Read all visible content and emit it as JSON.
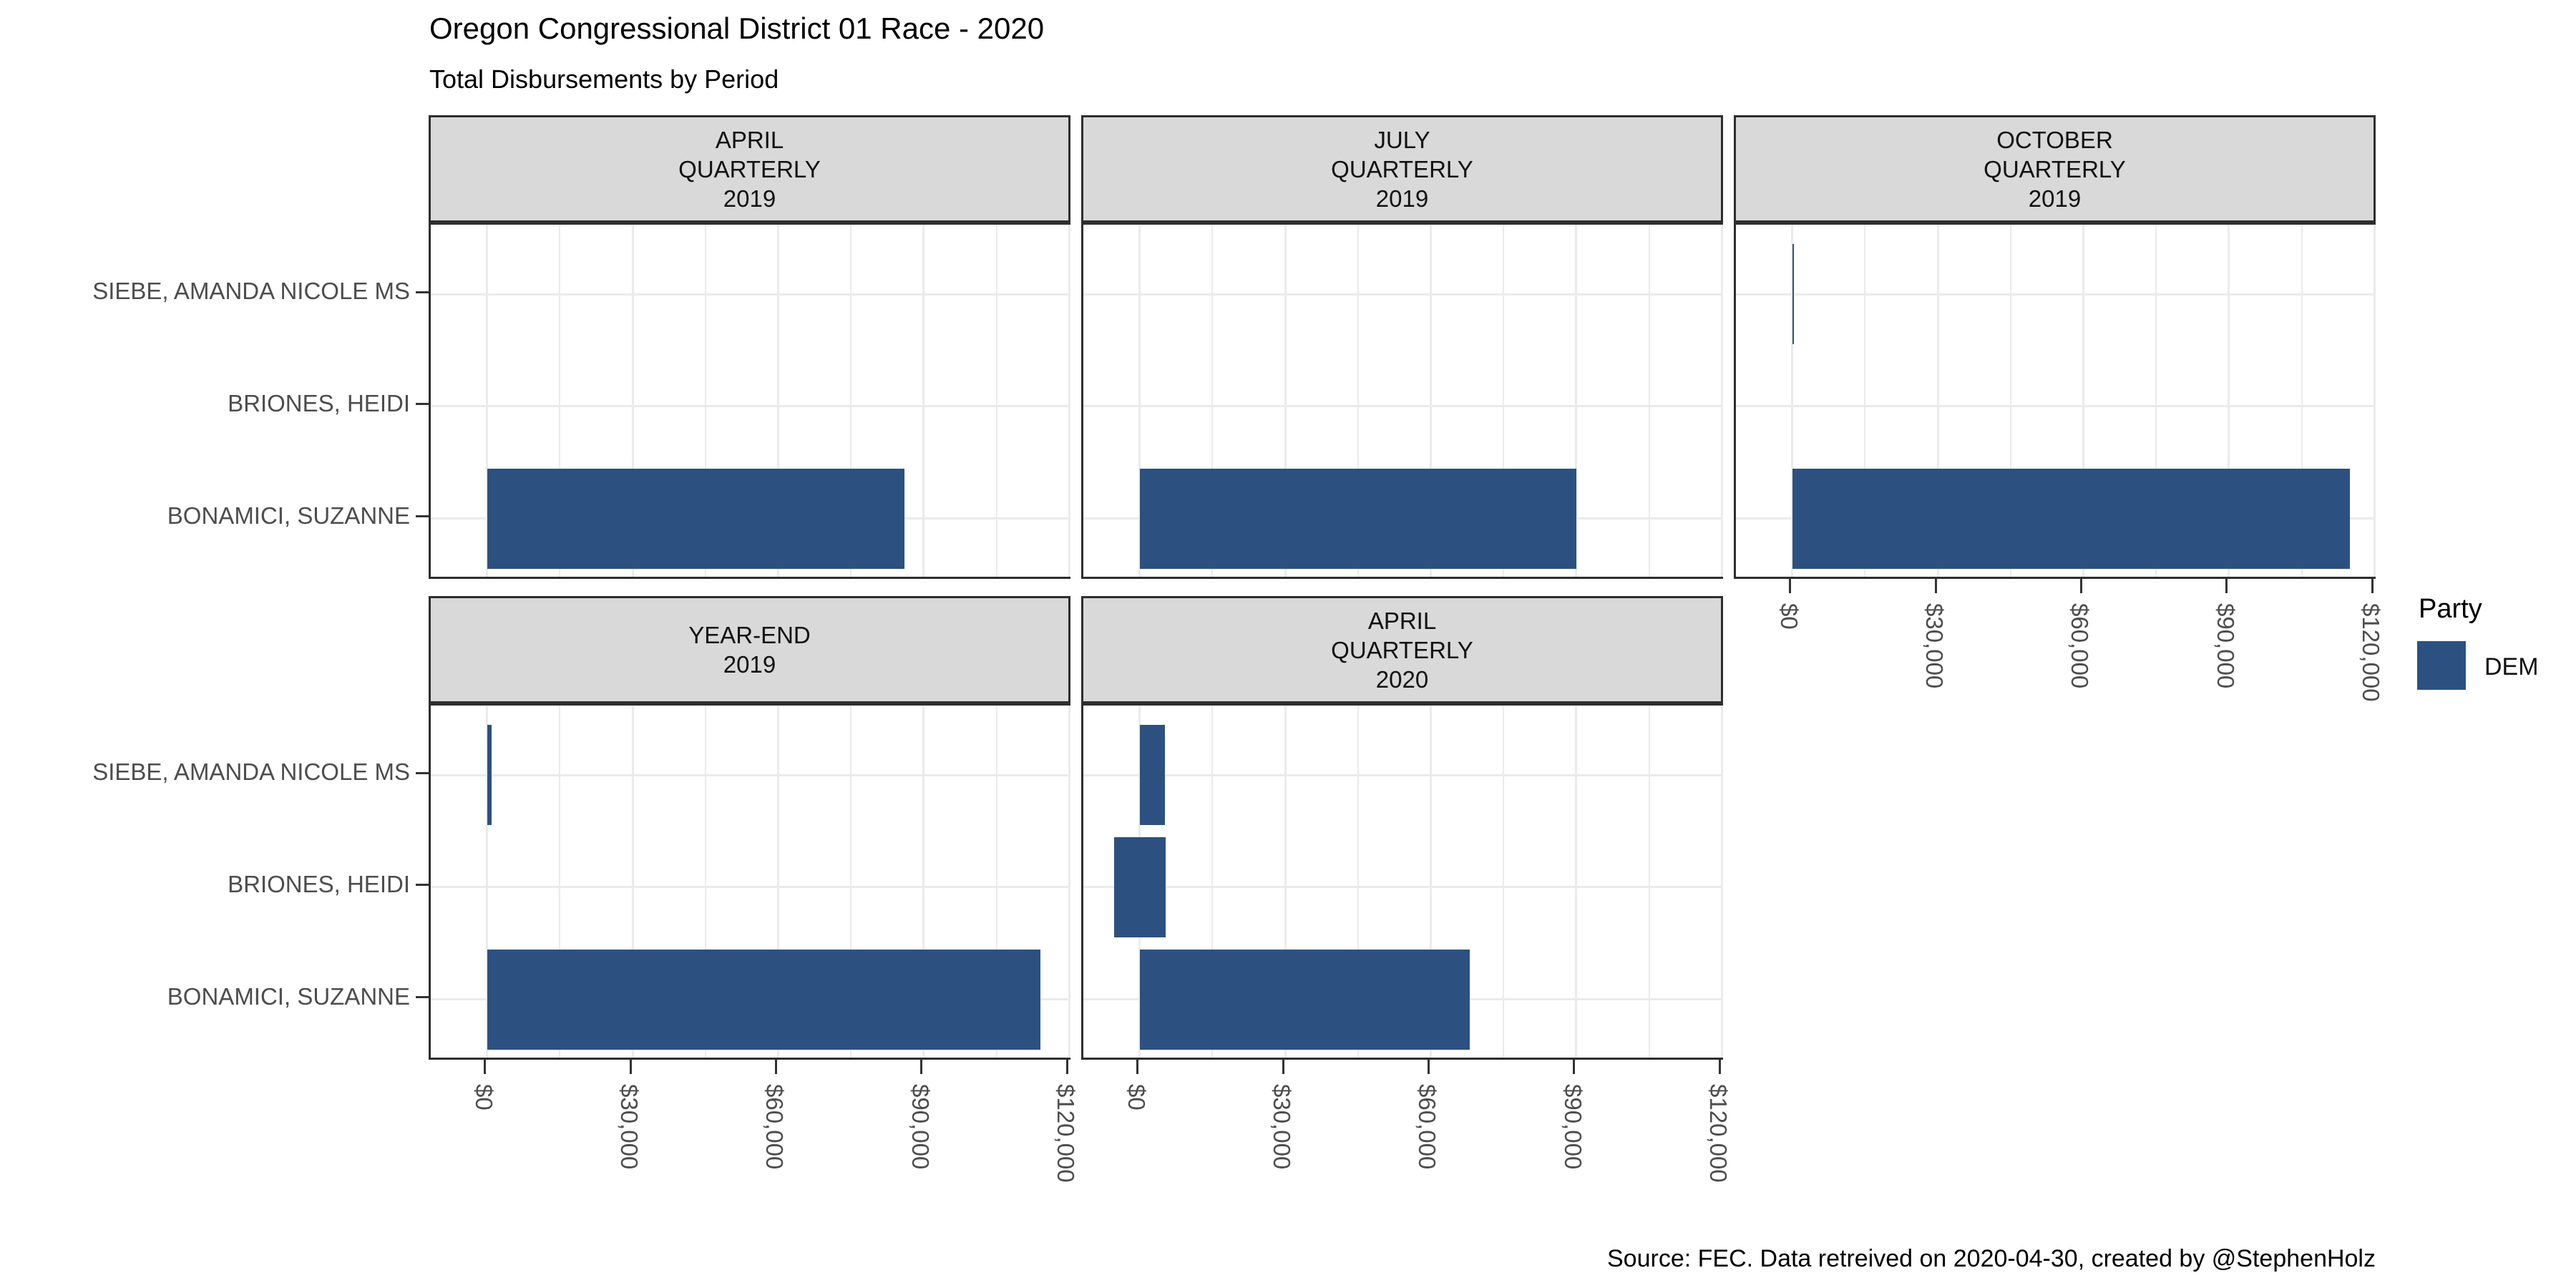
{
  "title": "Oregon Congressional District 01 Race - 2020",
  "subtitle": "Total Disbursements by Period",
  "caption": "Source: FEC. Data retreived on 2020-04-30, created by @StephenHolz",
  "legend": {
    "title": "Party",
    "items": [
      {
        "label": "DEM",
        "color": "#2c5180"
      }
    ]
  },
  "colors": {
    "bar": "#2c5180",
    "strip_bg": "#d9d9d9",
    "panel_border": "#2e2e2e",
    "grid": "#ebebeb",
    "axis_text": "#4d4d4d",
    "tick": "#333333"
  },
  "chart_data": {
    "type": "bar",
    "orientation": "horizontal",
    "title": "Oregon Congressional District 01 Race - 2020",
    "subtitle": "Total Disbursements by Period",
    "categories": [
      "SIEBE, AMANDA NICOLE MS",
      "BRIONES, HEIDI",
      "BONAMICI, SUZANNE"
    ],
    "x_axis": {
      "tick_labels": [
        "$0",
        "$30,000",
        "$60,000",
        "$90,000",
        "$120,000"
      ],
      "tick_values": [
        0,
        30000,
        60000,
        90000,
        120000
      ],
      "minor_values": [
        15000,
        45000,
        75000,
        105000
      ],
      "xlim": [
        -11600,
        120700
      ],
      "grid": true
    },
    "series_party": "DEM",
    "facets": [
      {
        "row": 0,
        "col": 0,
        "label_lines": [
          "APRIL",
          "QUARTERLY",
          "2019"
        ],
        "bars": [
          {
            "candidate": "BONAMICI, SUZANNE",
            "from": 0,
            "to": 86000
          }
        ]
      },
      {
        "row": 0,
        "col": 1,
        "label_lines": [
          "JULY",
          "QUARTERLY",
          "2019"
        ],
        "bars": [
          {
            "candidate": "BONAMICI, SUZANNE",
            "from": 0,
            "to": 90000
          }
        ]
      },
      {
        "row": 0,
        "col": 2,
        "label_lines": [
          "OCTOBER",
          "QUARTERLY",
          "2019"
        ],
        "bars": [
          {
            "candidate": "SIEBE, AMANDA NICOLE MS",
            "from": 0,
            "to": 300
          },
          {
            "candidate": "BONAMICI, SUZANNE",
            "from": 0,
            "to": 115000
          }
        ]
      },
      {
        "row": 1,
        "col": 0,
        "label_lines": [
          "YEAR-END",
          "2019"
        ],
        "bars": [
          {
            "candidate": "SIEBE, AMANDA NICOLE MS",
            "from": 0,
            "to": 1000
          },
          {
            "candidate": "BONAMICI, SUZANNE",
            "from": 0,
            "to": 114000
          }
        ]
      },
      {
        "row": 1,
        "col": 1,
        "label_lines": [
          "APRIL",
          "QUARTERLY",
          "2020"
        ],
        "bars": [
          {
            "candidate": "SIEBE, AMANDA NICOLE MS",
            "from": 0,
            "to": 5200
          },
          {
            "candidate": "BRIONES, HEIDI",
            "from": -5300,
            "to": 5300
          },
          {
            "candidate": "BONAMICI, SUZANNE",
            "from": 0,
            "to": 68000
          }
        ]
      }
    ],
    "legend": {
      "title": "Party",
      "entries": [
        "DEM"
      ],
      "position": "right"
    }
  }
}
